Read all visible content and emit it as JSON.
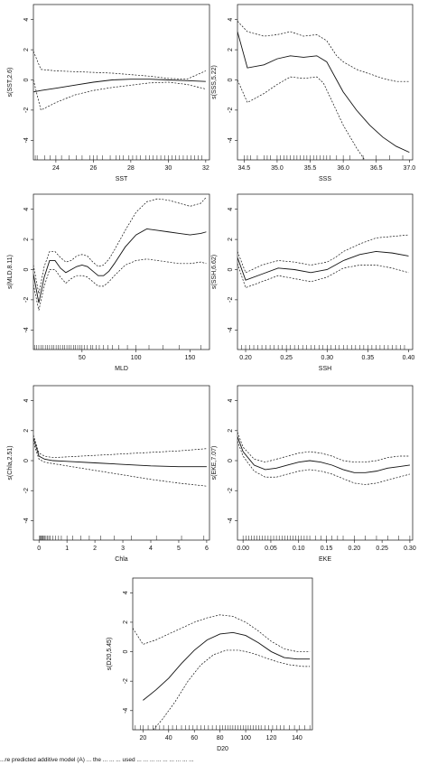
{
  "caption": "...re predicted additive model (A) ... the ... ... ... used ... ... ... ... ... ... ... ... ...",
  "chart_data": [
    {
      "type": "line",
      "xlabel": "SST",
      "ylabel": "s(SST,2.6)",
      "xlim": [
        22.8,
        32.2
      ],
      "ylim": [
        -5.3,
        5
      ],
      "xticks": [
        24,
        26,
        28,
        30,
        32
      ],
      "yticks": [
        -4,
        -2,
        0,
        2,
        4
      ],
      "fit": {
        "x": [
          22.8,
          23.2,
          24,
          25,
          26,
          27,
          28,
          29,
          30,
          31,
          32
        ],
        "y": [
          -0.8,
          -0.7,
          -0.55,
          -0.35,
          -0.15,
          0.0,
          0.05,
          0.05,
          0.0,
          -0.05,
          -0.1
        ]
      },
      "upper": {
        "x": [
          22.8,
          23.2,
          24,
          25,
          26,
          27,
          28,
          29,
          30,
          31,
          32
        ],
        "y": [
          1.9,
          0.7,
          0.6,
          0.55,
          0.5,
          0.45,
          0.35,
          0.25,
          0.1,
          0.05,
          0.6
        ]
      },
      "lower": {
        "x": [
          22.8,
          23.2,
          24,
          25,
          26,
          27,
          28,
          29,
          30,
          31,
          32
        ],
        "y": [
          0.0,
          -2.0,
          -1.5,
          -1.0,
          -0.7,
          -0.5,
          -0.35,
          -0.2,
          -0.15,
          -0.3,
          -0.6
        ]
      },
      "rug": [
        22.9,
        23.0,
        23.4,
        23.7,
        24.0,
        24.3,
        24.7,
        25.1,
        25.4,
        25.8,
        26.0,
        26.2,
        26.5,
        26.9,
        27.2,
        27.4,
        27.6,
        27.9,
        28.1,
        28.3,
        28.5,
        28.8,
        29.0,
        29.2,
        29.4,
        29.6,
        29.8,
        30.0,
        30.2,
        30.4,
        30.6,
        30.8,
        31.0,
        31.2,
        31.4,
        31.6,
        31.8
      ]
    },
    {
      "type": "line",
      "xlabel": "SSS",
      "ylabel": "s(SSS,5.22)",
      "xlim": [
        34.4,
        37.05
      ],
      "ylim": [
        -5.3,
        5
      ],
      "xticks": [
        34.5,
        35.0,
        35.5,
        36.0,
        36.5,
        37.0
      ],
      "yticks": [
        -4,
        -2,
        0,
        2,
        4
      ],
      "fit": {
        "x": [
          34.4,
          34.55,
          34.8,
          35.0,
          35.2,
          35.4,
          35.6,
          35.75,
          35.9,
          36.0,
          36.2,
          36.4,
          36.6,
          36.8,
          37.0
        ],
        "y": [
          3.2,
          0.8,
          1.0,
          1.4,
          1.6,
          1.5,
          1.6,
          1.2,
          0.0,
          -0.8,
          -2.0,
          -3.0,
          -3.8,
          -4.4,
          -4.8
        ]
      },
      "upper": {
        "x": [
          34.4,
          34.55,
          34.8,
          35.0,
          35.2,
          35.4,
          35.6,
          35.75,
          35.9,
          36.0,
          36.2,
          36.4,
          36.6,
          36.8,
          37.0
        ],
        "y": [
          3.9,
          3.2,
          2.9,
          3.0,
          3.2,
          2.9,
          3.0,
          2.6,
          1.6,
          1.2,
          0.7,
          0.4,
          0.1,
          -0.1,
          -0.1
        ]
      },
      "lower": {
        "x": [
          34.4,
          34.55,
          34.8,
          35.0,
          35.2,
          35.4,
          35.6,
          35.7,
          35.85,
          36.0,
          36.2,
          36.4
        ],
        "y": [
          0.0,
          -1.5,
          -0.9,
          -0.3,
          0.2,
          0.1,
          0.2,
          -0.2,
          -1.6,
          -3.0,
          -4.5,
          -5.8
        ]
      },
      "rug": [
        34.5,
        34.55,
        34.6,
        34.7,
        34.8,
        34.85,
        34.9,
        35.0,
        35.05,
        35.1,
        35.15,
        35.2,
        35.25,
        35.3,
        35.35,
        35.4,
        35.45,
        35.5,
        35.55,
        35.6,
        35.65,
        35.7,
        35.75,
        35.8,
        35.9,
        36.0,
        36.1,
        36.3,
        36.5,
        36.7,
        36.9
      ]
    },
    {
      "type": "line",
      "xlabel": "MLD",
      "ylabel": "s(MLD,8.11)",
      "xlim": [
        5,
        168
      ],
      "ylim": [
        -5.3,
        5
      ],
      "xticks": [
        50,
        100,
        150
      ],
      "yticks": [
        -4,
        -2,
        0,
        2,
        4
      ],
      "fit": {
        "x": [
          5,
          10,
          15,
          20,
          25,
          30,
          35,
          40,
          45,
          50,
          55,
          60,
          65,
          70,
          75,
          80,
          90,
          100,
          110,
          120,
          130,
          140,
          150,
          160,
          165
        ],
        "y": [
          -0.3,
          -2.2,
          -0.5,
          0.6,
          0.6,
          0.1,
          -0.2,
          0.0,
          0.2,
          0.3,
          0.2,
          -0.1,
          -0.4,
          -0.4,
          -0.1,
          0.4,
          1.5,
          2.3,
          2.7,
          2.6,
          2.5,
          2.4,
          2.3,
          2.4,
          2.5
        ]
      },
      "upper": {
        "x": [
          5,
          10,
          15,
          20,
          25,
          30,
          35,
          40,
          45,
          50,
          55,
          60,
          65,
          70,
          75,
          80,
          90,
          100,
          110,
          120,
          130,
          140,
          150,
          160,
          165
        ],
        "y": [
          0.3,
          -1.6,
          0.2,
          1.2,
          1.2,
          0.8,
          0.5,
          0.6,
          0.9,
          1.0,
          0.9,
          0.5,
          0.2,
          0.3,
          0.7,
          1.3,
          2.6,
          3.8,
          4.5,
          4.7,
          4.6,
          4.4,
          4.2,
          4.4,
          4.8
        ]
      },
      "lower": {
        "x": [
          5,
          10,
          15,
          20,
          25,
          30,
          35,
          40,
          45,
          50,
          55,
          60,
          65,
          70,
          75,
          80,
          90,
          100,
          110,
          120,
          130,
          140,
          150,
          160,
          165
        ],
        "y": [
          -1.0,
          -2.7,
          -1.1,
          0.0,
          0.0,
          -0.5,
          -0.9,
          -0.6,
          -0.4,
          -0.4,
          -0.5,
          -0.8,
          -1.1,
          -1.1,
          -0.8,
          -0.4,
          0.3,
          0.6,
          0.7,
          0.6,
          0.5,
          0.4,
          0.4,
          0.5,
          0.4
        ]
      },
      "rug": [
        6,
        8,
        10,
        12,
        14,
        16,
        18,
        20,
        22,
        24,
        26,
        28,
        30,
        32,
        34,
        36,
        38,
        40,
        42,
        44,
        46,
        48,
        50,
        52,
        55,
        58,
        60,
        63,
        66,
        70,
        74,
        78,
        84,
        92,
        100,
        112,
        125,
        140,
        160
      ]
    },
    {
      "type": "line",
      "xlabel": "SSH",
      "ylabel": "s(SSH,6.62)",
      "xlim": [
        0.19,
        0.405
      ],
      "ylim": [
        -5.3,
        5
      ],
      "xticks": [
        0.2,
        0.25,
        0.3,
        0.35,
        0.4
      ],
      "yticks": [
        -4,
        -2,
        0,
        2,
        4
      ],
      "fit": {
        "x": [
          0.19,
          0.2,
          0.22,
          0.24,
          0.26,
          0.28,
          0.3,
          0.31,
          0.32,
          0.34,
          0.36,
          0.38,
          0.4
        ],
        "y": [
          0.8,
          -0.7,
          -0.3,
          0.1,
          0.0,
          -0.2,
          0.0,
          0.3,
          0.6,
          1.0,
          1.2,
          1.1,
          0.9
        ]
      },
      "upper": {
        "x": [
          0.19,
          0.2,
          0.22,
          0.24,
          0.26,
          0.28,
          0.3,
          0.31,
          0.32,
          0.34,
          0.36,
          0.38,
          0.4
        ],
        "y": [
          1.2,
          -0.2,
          0.3,
          0.6,
          0.5,
          0.3,
          0.5,
          0.8,
          1.2,
          1.7,
          2.1,
          2.2,
          2.3
        ]
      },
      "lower": {
        "x": [
          0.19,
          0.2,
          0.22,
          0.24,
          0.26,
          0.28,
          0.3,
          0.31,
          0.32,
          0.34,
          0.36,
          0.38,
          0.4
        ],
        "y": [
          0.4,
          -1.2,
          -0.8,
          -0.4,
          -0.6,
          -0.8,
          -0.5,
          -0.2,
          0.1,
          0.3,
          0.3,
          0.1,
          -0.2
        ]
      },
      "rug": [
        0.195,
        0.2,
        0.205,
        0.21,
        0.215,
        0.22,
        0.225,
        0.23,
        0.235,
        0.24,
        0.245,
        0.25,
        0.255,
        0.26,
        0.265,
        0.27,
        0.275,
        0.28,
        0.285,
        0.29,
        0.295,
        0.3,
        0.305,
        0.31,
        0.315,
        0.32,
        0.325,
        0.33,
        0.335,
        0.34,
        0.345,
        0.35,
        0.355,
        0.36,
        0.365,
        0.37,
        0.375,
        0.38,
        0.385,
        0.39,
        0.395
      ]
    },
    {
      "type": "line",
      "xlabel": "Chla",
      "ylabel": "s(Chla,2.51)",
      "xlim": [
        -0.2,
        6.1
      ],
      "ylim": [
        -5.3,
        5
      ],
      "xticks": [
        0,
        1,
        2,
        3,
        4,
        5,
        6
      ],
      "yticks": [
        -4,
        -2,
        0,
        2,
        4
      ],
      "fit": {
        "x": [
          -0.2,
          0.0,
          0.2,
          0.5,
          1,
          2,
          3,
          4,
          5,
          6
        ],
        "y": [
          1.5,
          0.3,
          0.1,
          0.0,
          -0.05,
          -0.15,
          -0.25,
          -0.35,
          -0.4,
          -0.4
        ]
      },
      "upper": {
        "x": [
          -0.2,
          0.0,
          0.2,
          0.5,
          1,
          2,
          3,
          4,
          5,
          6
        ],
        "y": [
          1.7,
          0.5,
          0.3,
          0.2,
          0.25,
          0.35,
          0.45,
          0.55,
          0.65,
          0.8
        ]
      },
      "lower": {
        "x": [
          -0.2,
          0.0,
          0.2,
          0.5,
          1,
          2,
          3,
          4,
          5,
          6
        ],
        "y": [
          1.2,
          0.1,
          -0.1,
          -0.2,
          -0.35,
          -0.65,
          -0.95,
          -1.25,
          -1.5,
          -1.7
        ]
      },
      "rug": [
        0.02,
        0.05,
        0.08,
        0.1,
        0.13,
        0.16,
        0.2,
        0.25,
        0.3,
        0.35,
        0.4,
        0.5,
        0.6,
        0.7,
        0.8,
        1.0,
        1.2,
        1.5,
        1.8,
        2.2,
        2.7,
        3.3,
        4.2,
        5.1,
        5.9
      ]
    },
    {
      "type": "line",
      "xlabel": "EKE",
      "ylabel": "s(EKE,7.07)",
      "xlim": [
        -0.01,
        0.305
      ],
      "ylim": [
        -5.3,
        5
      ],
      "xticks": [
        0.0,
        0.05,
        0.1,
        0.15,
        0.2,
        0.25,
        0.3
      ],
      "yticks": [
        -4,
        -2,
        0,
        2,
        4
      ],
      "fit": {
        "x": [
          -0.01,
          0.0,
          0.02,
          0.04,
          0.06,
          0.08,
          0.1,
          0.12,
          0.14,
          0.16,
          0.18,
          0.2,
          0.22,
          0.24,
          0.26,
          0.28,
          0.3
        ],
        "y": [
          1.6,
          0.6,
          -0.3,
          -0.6,
          -0.5,
          -0.3,
          -0.1,
          0.0,
          -0.1,
          -0.3,
          -0.6,
          -0.8,
          -0.8,
          -0.7,
          -0.5,
          -0.4,
          -0.3
        ]
      },
      "upper": {
        "x": [
          -0.01,
          0.0,
          0.02,
          0.04,
          0.06,
          0.08,
          0.1,
          0.12,
          0.14,
          0.16,
          0.18,
          0.2,
          0.22,
          0.24,
          0.26,
          0.28,
          0.3
        ],
        "y": [
          1.9,
          0.9,
          0.1,
          -0.1,
          0.1,
          0.3,
          0.5,
          0.6,
          0.5,
          0.3,
          0.0,
          -0.1,
          -0.1,
          0.0,
          0.2,
          0.3,
          0.3
        ]
      },
      "lower": {
        "x": [
          -0.01,
          0.0,
          0.02,
          0.04,
          0.06,
          0.08,
          0.1,
          0.12,
          0.14,
          0.16,
          0.18,
          0.2,
          0.22,
          0.24,
          0.26,
          0.28,
          0.3
        ],
        "y": [
          1.3,
          0.3,
          -0.7,
          -1.1,
          -1.1,
          -0.9,
          -0.7,
          -0.6,
          -0.7,
          -0.9,
          -1.2,
          -1.5,
          -1.6,
          -1.5,
          -1.3,
          -1.1,
          -0.9
        ]
      },
      "rug": [
        0.0,
        0.005,
        0.01,
        0.015,
        0.02,
        0.025,
        0.03,
        0.035,
        0.04,
        0.045,
        0.05,
        0.055,
        0.06,
        0.065,
        0.07,
        0.075,
        0.08,
        0.085,
        0.09,
        0.095,
        0.1,
        0.105,
        0.11,
        0.115,
        0.12,
        0.13,
        0.14,
        0.15,
        0.16,
        0.17,
        0.18,
        0.2,
        0.22,
        0.24,
        0.26,
        0.28,
        0.3
      ]
    },
    {
      "type": "line",
      "xlabel": "D20",
      "ylabel": "s(D20,5.45)",
      "xlim": [
        12,
        152
      ],
      "ylim": [
        -5.3,
        5
      ],
      "xticks": [
        20,
        40,
        60,
        80,
        100,
        120,
        140
      ],
      "yticks": [
        -4,
        -2,
        0,
        2,
        4
      ],
      "fit": {
        "x": [
          20,
          30,
          40,
          50,
          60,
          70,
          80,
          90,
          100,
          110,
          120,
          130,
          140,
          150
        ],
        "y": [
          -3.3,
          -2.6,
          -1.8,
          -0.8,
          0.1,
          0.8,
          1.2,
          1.3,
          1.1,
          0.6,
          0.0,
          -0.4,
          -0.5,
          -0.5
        ]
      },
      "upper": {
        "x": [
          12,
          20,
          30,
          40,
          50,
          60,
          70,
          80,
          90,
          100,
          110,
          120,
          130,
          140,
          150
        ],
        "y": [
          1.6,
          0.5,
          0.8,
          1.2,
          1.6,
          2.0,
          2.3,
          2.5,
          2.4,
          2.0,
          1.4,
          0.7,
          0.2,
          0.0,
          0.0
        ]
      },
      "lower": {
        "x": [
          28,
          35,
          45,
          55,
          65,
          75,
          85,
          95,
          105,
          115,
          125,
          135,
          145,
          150
        ],
        "y": [
          -5.3,
          -4.6,
          -3.4,
          -2.0,
          -0.9,
          -0.2,
          0.1,
          0.1,
          -0.1,
          -0.4,
          -0.7,
          -0.9,
          -1.0,
          -1.0
        ]
      },
      "rug": [
        14,
        18,
        20,
        24,
        28,
        30,
        33,
        36,
        40,
        43,
        46,
        50,
        53,
        56,
        59,
        62,
        65,
        68,
        71,
        74,
        77,
        80,
        82,
        84,
        86,
        88,
        90,
        92,
        94,
        96,
        98,
        100,
        102,
        104,
        106,
        108,
        110,
        112,
        115,
        118,
        121,
        124,
        127,
        130,
        134,
        138,
        142,
        146,
        150
      ]
    }
  ]
}
